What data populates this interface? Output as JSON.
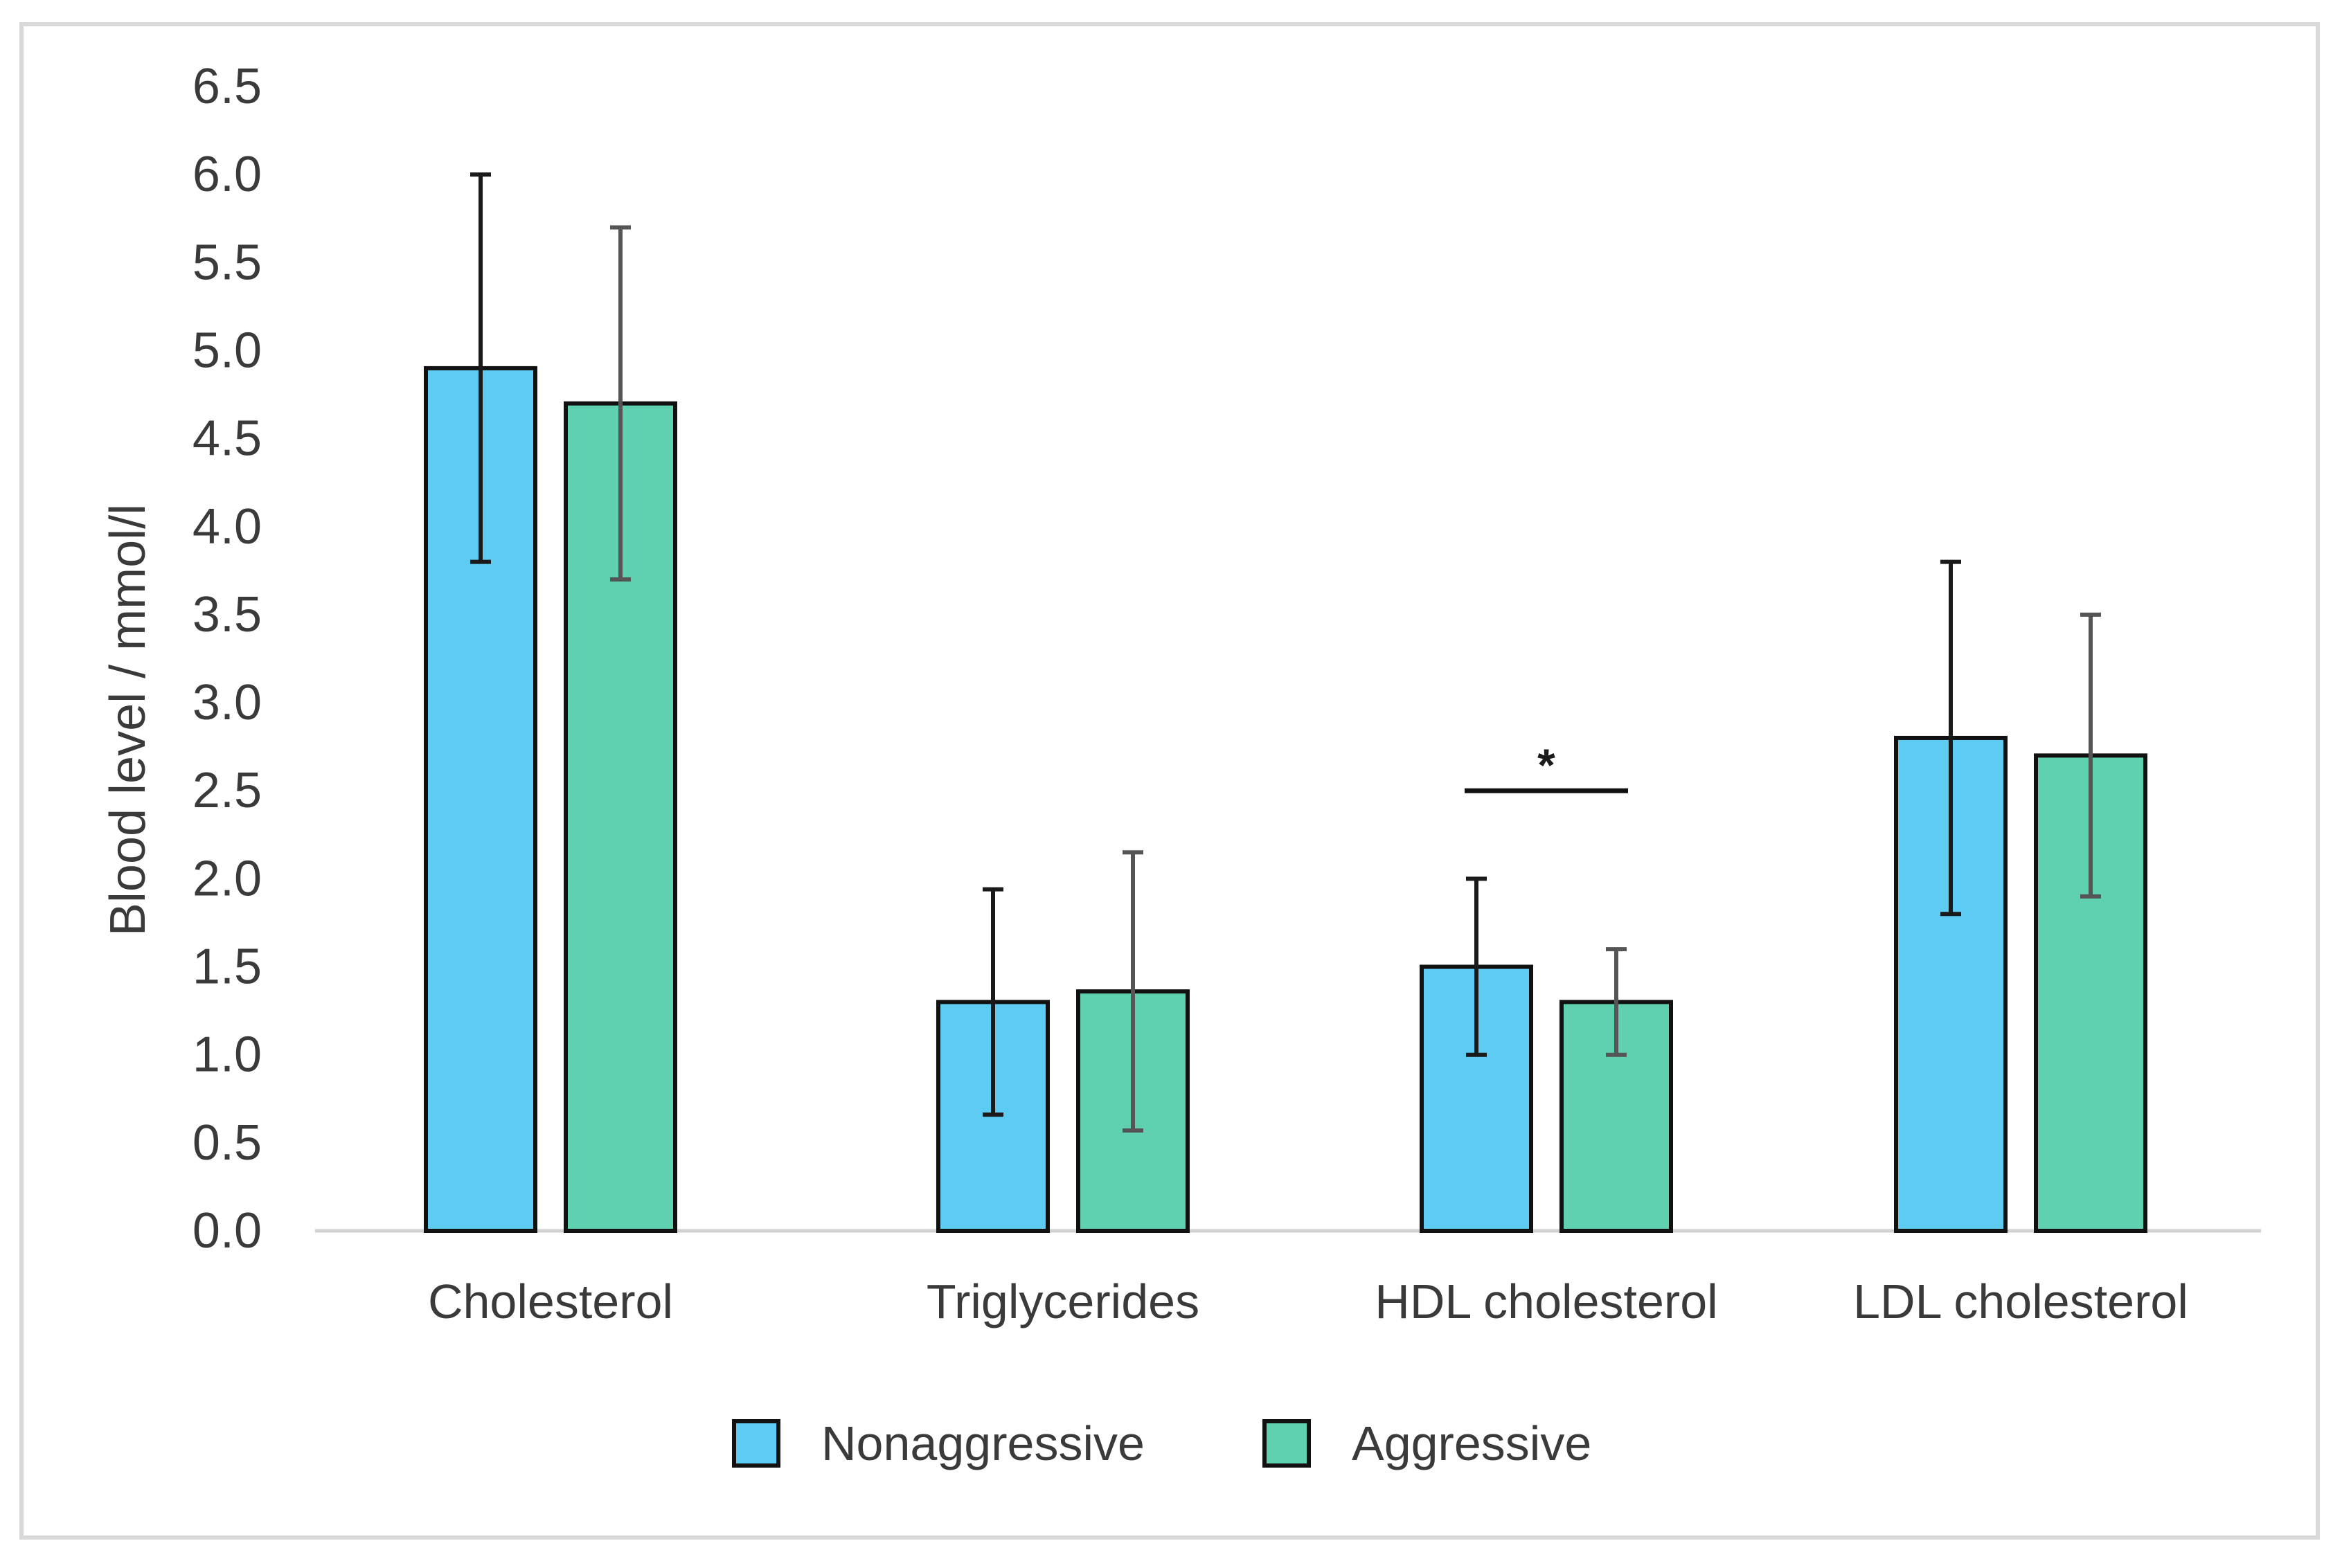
{
  "chart_data": {
    "type": "bar",
    "title": "",
    "xlabel": "",
    "ylabel": "Blood level / mmol/l",
    "ylim": [
      0,
      6.5
    ],
    "yticks": [
      "0.0",
      "0.5",
      "1.0",
      "1.5",
      "2.0",
      "2.5",
      "3.0",
      "3.5",
      "4.0",
      "4.5",
      "5.0",
      "5.5",
      "6.0",
      "6.5"
    ],
    "ytick_values": [
      0,
      0.5,
      1.0,
      1.5,
      2.0,
      2.5,
      3.0,
      3.5,
      4.0,
      4.5,
      5.0,
      5.5,
      6.0,
      6.5
    ],
    "grid": false,
    "categories": [
      "Cholesterol",
      "Triglycerides",
      "HDL cholesterol",
      "LDL cholesterol"
    ],
    "series": [
      {
        "name": "Nonaggressive",
        "color": "#5ecbf2",
        "error_color": "#1a1a1a",
        "values": [
          4.9,
          1.3,
          1.5,
          2.8
        ],
        "error": [
          1.1,
          0.64,
          0.5,
          1.0
        ]
      },
      {
        "name": "Aggressive",
        "color": "#5fd0b0",
        "error_color": "#555555",
        "values": [
          4.7,
          1.36,
          1.3,
          2.7
        ],
        "error": [
          1.0,
          0.79,
          0.3,
          0.8
        ]
      }
    ],
    "annotations": [
      {
        "text": "*",
        "category": "HDL cholesterol",
        "bracket_y": 2.5
      }
    ],
    "legend_position": "bottom"
  }
}
